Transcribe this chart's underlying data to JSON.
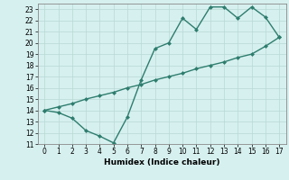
{
  "line1_x": [
    0,
    1,
    2,
    3,
    4,
    5,
    6,
    7,
    8,
    9,
    10,
    11,
    12,
    13,
    14,
    15,
    16,
    17
  ],
  "line1_y": [
    14.0,
    13.8,
    13.3,
    12.2,
    11.7,
    11.1,
    13.4,
    16.7,
    19.5,
    20.0,
    22.2,
    21.2,
    23.2,
    23.2,
    22.2,
    23.2,
    22.3,
    20.5
  ],
  "line2_x": [
    0,
    1,
    2,
    3,
    4,
    5,
    6,
    7,
    8,
    9,
    10,
    11,
    12,
    13,
    14,
    15,
    16,
    17
  ],
  "line2_y": [
    14.0,
    14.3,
    14.6,
    15.0,
    15.3,
    15.6,
    16.0,
    16.3,
    16.7,
    17.0,
    17.3,
    17.7,
    18.0,
    18.3,
    18.7,
    19.0,
    19.7,
    20.5
  ],
  "color": "#2e7d6e",
  "bg_color": "#d6f0ef",
  "grid_color": "#b8d8d4",
  "xlabel": "Humidex (Indice chaleur)",
  "xlim": [
    -0.5,
    17.5
  ],
  "ylim": [
    11,
    23.5
  ],
  "yticks": [
    11,
    12,
    13,
    14,
    15,
    16,
    17,
    18,
    19,
    20,
    21,
    22,
    23
  ],
  "xticks": [
    0,
    1,
    2,
    3,
    4,
    5,
    6,
    7,
    8,
    9,
    10,
    11,
    12,
    13,
    14,
    15,
    16,
    17
  ]
}
